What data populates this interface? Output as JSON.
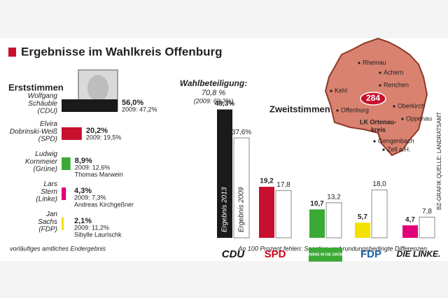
{
  "title": "Ergebnisse im Wahlkreis Offenburg",
  "turnout": {
    "label": "Wahlbeteiligung:",
    "value": "70,8 %",
    "previous": "(2009: 69,2%)"
  },
  "map": {
    "number": "284",
    "district": "LK Ortenau-",
    "district2": "kreis",
    "places": [
      "Rheinau",
      "Achern",
      "Renchen",
      "Kehl",
      "Oberkirch",
      "Offenburg",
      "Oppenau",
      "Gengenbach",
      "Zell a.H."
    ]
  },
  "source": "BZ-GRAFIK  QUELLE: LANDRATSAMT",
  "footnote_left": "vorläufiges amtliches Endergebnis",
  "footnote_right": "An 100 Prozent fehlen: Sonstige und rundungsbedingte Differenzen",
  "chart_data": [
    {
      "type": "hbar",
      "title": "Erststimmen",
      "categories": [
        "Wolfgang Schäuble",
        "Elvira Dobrinski-Weiß",
        "Ludwig Kornmeier",
        "Lars Stern",
        "Jan Sachs"
      ],
      "parties": [
        "(CDU)",
        "(SPD)",
        "(Grüne)",
        "(Linke)",
        "(FDP)"
      ],
      "values": [
        56.0,
        20.2,
        8.9,
        4.3,
        2.1
      ],
      "value_labels": [
        "56,0%",
        "20,2%",
        "8,9%",
        "4,3%",
        "2,1%"
      ],
      "previous": [
        "2009: 47,2%",
        "2009: 19,5%",
        "2009: 12,6%",
        "2009: 7,3%",
        "2009: 11,2%"
      ],
      "list_candidates": [
        null,
        null,
        "Thomas Marwein",
        "Andreas Kirchgeßner",
        "Sibylle Laurischk"
      ],
      "colors": [
        "#1a1a1a",
        "#c8102e",
        "#3aaa35",
        "#e2007a",
        "#f5e100"
      ]
    },
    {
      "type": "bar",
      "title": "Zweitstimmen",
      "categories": [
        "CDU",
        "SPD",
        "BÜNDNIS 90 DIE GRÜNEN",
        "FDP",
        "DIE LINKE."
      ],
      "category_colors": [
        "#111111",
        "#d0021b",
        "#ffffff",
        "#1a5fa8",
        "#111111"
      ],
      "series": [
        {
          "name": "Ergebnis 2013",
          "colors": [
            "#1a1a1a",
            "#c8102e",
            "#3aaa35",
            "#f5e100",
            "#e2007a"
          ],
          "values": [
            48.3,
            19.2,
            10.7,
            5.7,
            4.7
          ],
          "value_labels": [
            "48,3%",
            "19,2",
            "10,7",
            "5,7",
            "4,7"
          ]
        },
        {
          "name": "Ergebnis 2009",
          "color": "#ffffff",
          "values": [
            37.6,
            17.8,
            13.2,
            18.0,
            7.8
          ],
          "value_labels": [
            "37,6%",
            "17,8",
            "13,2",
            "18,0",
            "7,8"
          ]
        }
      ]
    }
  ]
}
